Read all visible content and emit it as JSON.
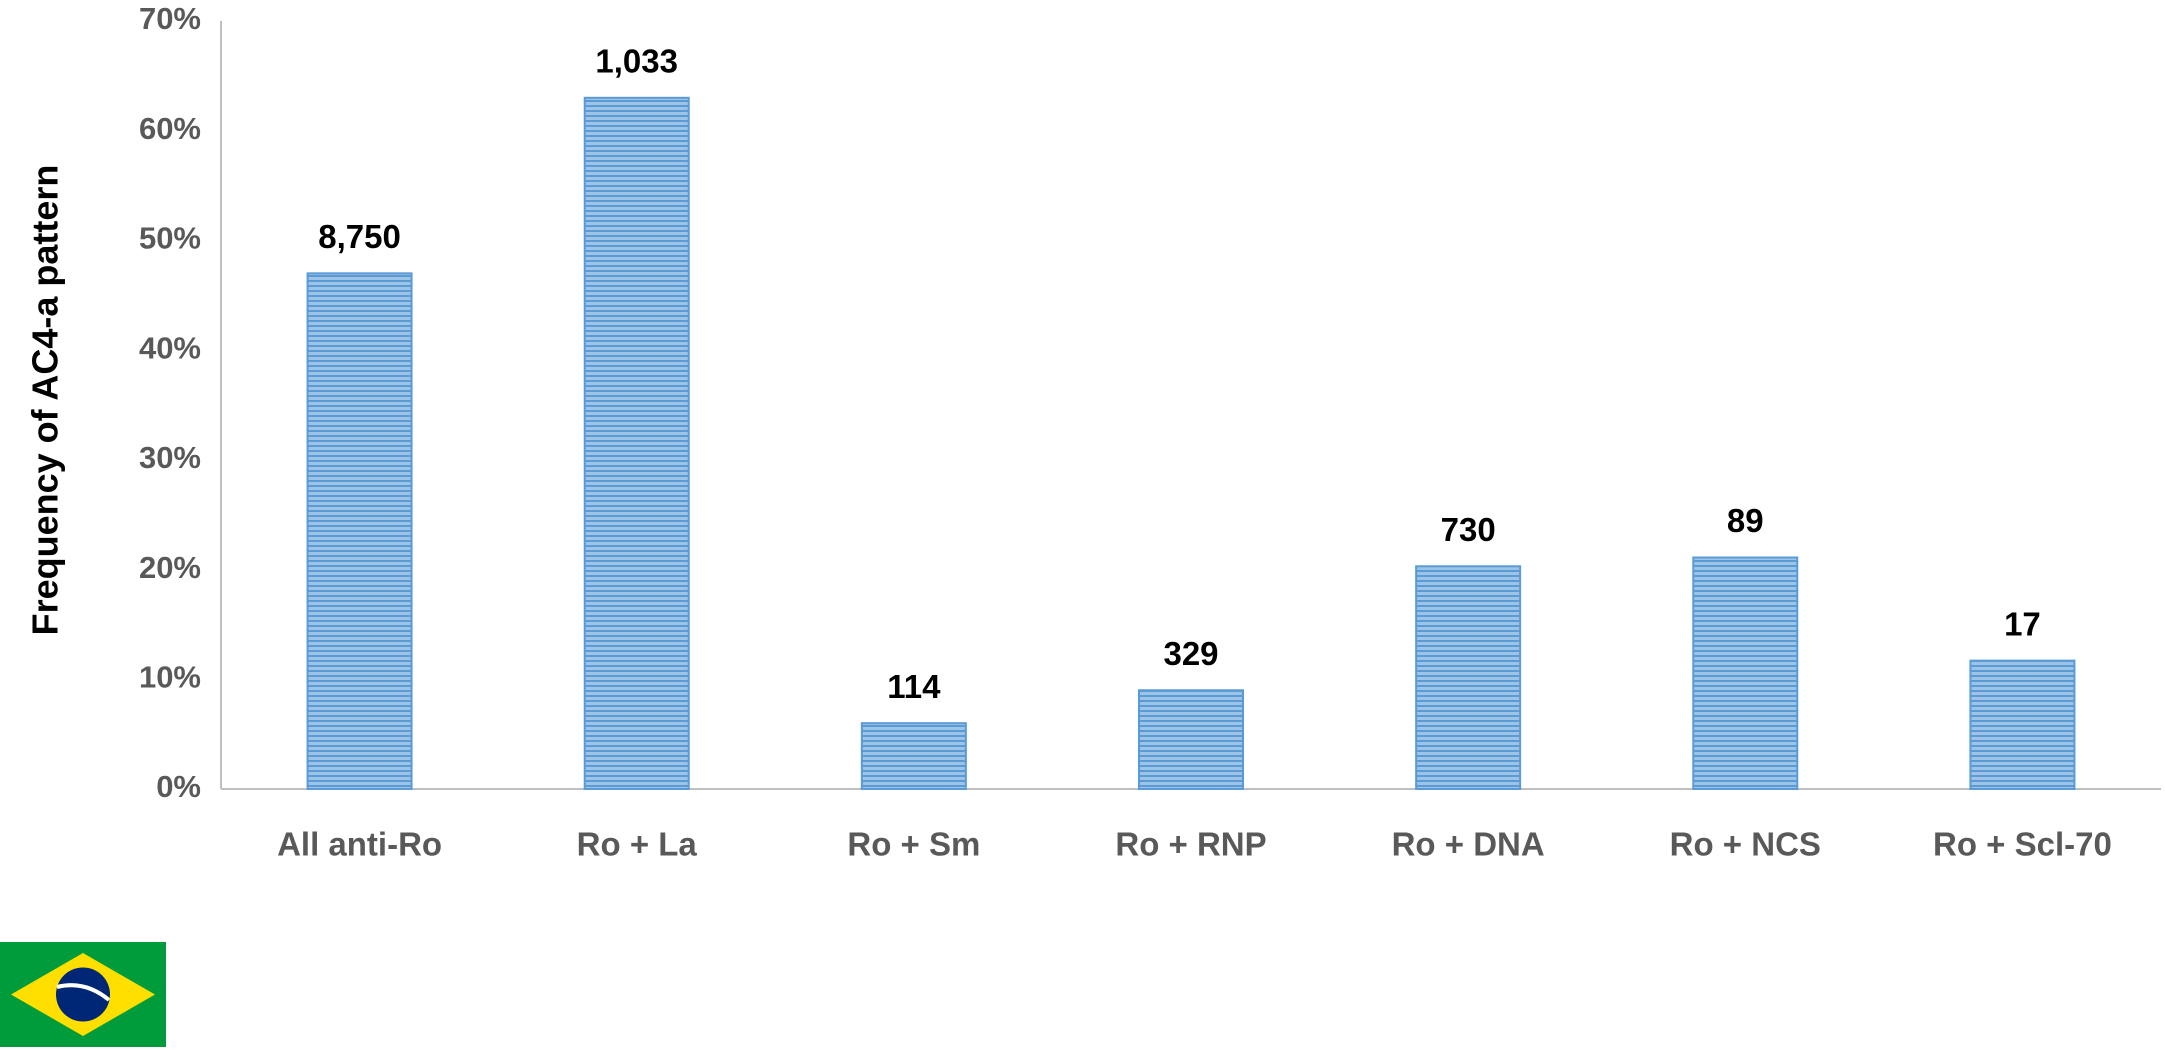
{
  "chart_data": {
    "type": "bar",
    "y_label": "Frequency of AC4-a pattern",
    "categories": [
      "All anti-Ro",
      "Ro + La",
      "Ro + Sm",
      "Ro + RNP",
      "Ro + DNA",
      "Ro + NCS",
      "Ro + Scl-70"
    ],
    "values": [
      47,
      63,
      6,
      9,
      20.3,
      21.1,
      11.7
    ],
    "bar_labels": [
      "8,750",
      "1,033",
      "114",
      "329",
      "730",
      "89",
      "17"
    ],
    "color": "#5b9bd5",
    "ylim": [
      0,
      70
    ],
    "yticks": [
      {
        "value": 0,
        "label": "0%"
      },
      {
        "value": 10,
        "label": "10%"
      },
      {
        "value": 20,
        "label": "20%"
      },
      {
        "value": 30,
        "label": "30%"
      },
      {
        "value": 40,
        "label": "40%"
      },
      {
        "value": 50,
        "label": "50%"
      },
      {
        "value": 60,
        "label": "60%"
      },
      {
        "value": 70,
        "label": "70%"
      }
    ],
    "grid": false
  }
}
